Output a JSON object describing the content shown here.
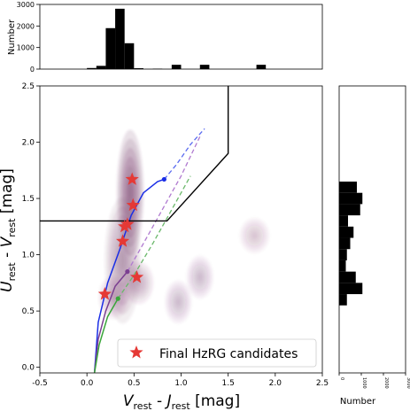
{
  "chart_data": {
    "type": "scatter",
    "xlabel_main": "V",
    "xlabel_main_sub": "rest",
    "xlabel_sep": " - ",
    "xlabel_second": "J",
    "xlabel_second_sub": "rest",
    "xlabel_unit": " [mag]",
    "ylabel_main": "U",
    "ylabel_main_sub": "rest",
    "ylabel_sep": " - ",
    "ylabel_second": "V",
    "ylabel_second_sub": "rest",
    "ylabel_unit": " [mag]",
    "xlim": [
      -0.5,
      2.5
    ],
    "ylim": [
      -0.05,
      2.5
    ],
    "xticks": [
      "-0.5",
      "0.0",
      "0.5",
      "1.0",
      "1.5",
      "2.0",
      "2.5"
    ],
    "xtick_values": [
      -0.5,
      0.0,
      0.5,
      1.0,
      1.5,
      2.0,
      2.5
    ],
    "yticks": [
      "0.0",
      "0.5",
      "1.0",
      "1.5",
      "2.0",
      "2.5"
    ],
    "ytick_values": [
      0.0,
      0.5,
      1.0,
      1.5,
      2.0,
      2.5
    ],
    "legend_label": "Final HzRG candidates",
    "legend_position": "lower-right",
    "candidates": [
      {
        "x": 0.48,
        "y": 1.67
      },
      {
        "x": 0.49,
        "y": 1.44
      },
      {
        "x": 0.43,
        "y": 1.27
      },
      {
        "x": 0.4,
        "y": 1.25
      },
      {
        "x": 0.38,
        "y": 1.12
      },
      {
        "x": 0.53,
        "y": 0.8
      },
      {
        "x": 0.19,
        "y": 0.65
      }
    ],
    "selection_boundary": [
      [
        -0.5,
        1.3
      ],
      [
        0.85,
        1.3
      ],
      [
        1.5,
        1.9
      ],
      [
        1.5,
        2.5
      ]
    ],
    "track_blue": [
      [
        0.08,
        -0.05
      ],
      [
        0.12,
        0.4
      ],
      [
        0.22,
        0.75
      ],
      [
        0.35,
        1.05
      ],
      [
        0.47,
        1.35
      ],
      [
        0.6,
        1.55
      ],
      [
        0.75,
        1.65
      ],
      [
        0.82,
        1.67
      ]
    ],
    "track_blue_dashed": [
      [
        0.82,
        1.67
      ],
      [
        0.95,
        1.8
      ],
      [
        1.1,
        1.98
      ],
      [
        1.25,
        2.12
      ]
    ],
    "track_purple": [
      [
        0.08,
        -0.05
      ],
      [
        0.12,
        0.25
      ],
      [
        0.2,
        0.5
      ],
      [
        0.3,
        0.72
      ],
      [
        0.43,
        0.85
      ]
    ],
    "track_purple_dashed": [
      [
        0.43,
        0.85
      ],
      [
        0.6,
        1.1
      ],
      [
        0.8,
        1.4
      ],
      [
        1.0,
        1.7
      ],
      [
        1.2,
        2.05
      ]
    ],
    "track_green": [
      [
        0.08,
        -0.05
      ],
      [
        0.13,
        0.2
      ],
      [
        0.22,
        0.45
      ],
      [
        0.33,
        0.61
      ]
    ],
    "track_green_dashed": [
      [
        0.33,
        0.61
      ],
      [
        0.5,
        0.82
      ],
      [
        0.7,
        1.1
      ],
      [
        0.9,
        1.4
      ],
      [
        1.1,
        1.7
      ]
    ],
    "density_blobs": [
      {
        "x": 0.46,
        "y": 1.55,
        "sx": 0.09,
        "sy": 0.35,
        "level": 1.0
      },
      {
        "x": 0.38,
        "y": 0.95,
        "sx": 0.12,
        "sy": 0.35,
        "level": 0.55
      },
      {
        "x": 0.55,
        "y": 0.75,
        "sx": 0.1,
        "sy": 0.12,
        "level": 0.35
      },
      {
        "x": 0.28,
        "y": 0.62,
        "sx": 0.1,
        "sy": 0.12,
        "level": 0.3
      },
      {
        "x": 0.97,
        "y": 0.58,
        "sx": 0.09,
        "sy": 0.12,
        "level": 0.25
      },
      {
        "x": 1.2,
        "y": 0.8,
        "sx": 0.09,
        "sy": 0.12,
        "level": 0.25
      },
      {
        "x": 1.78,
        "y": 1.17,
        "sx": 0.1,
        "sy": 0.1,
        "level": 0.18
      }
    ],
    "top_hist": {
      "ylabel": "Number",
      "yticks": [
        "0",
        "1000",
        "2000",
        "3000"
      ],
      "ytick_values": [
        0,
        1000,
        2000,
        3000
      ],
      "ylim": [
        0,
        3000
      ],
      "bin_width": 0.1,
      "bins": [
        {
          "x": 0.05,
          "v": 50
        },
        {
          "x": 0.15,
          "v": 150
        },
        {
          "x": 0.25,
          "v": 1900
        },
        {
          "x": 0.35,
          "v": 2800
        },
        {
          "x": 0.45,
          "v": 1200
        },
        {
          "x": 0.55,
          "v": 40
        },
        {
          "x": 0.75,
          "v": 20
        },
        {
          "x": 0.95,
          "v": 200
        },
        {
          "x": 1.25,
          "v": 200
        },
        {
          "x": 1.85,
          "v": 200
        }
      ]
    },
    "right_hist": {
      "xlabel": "Number",
      "xticks": [
        "0",
        "1000",
        "2000",
        "3000"
      ],
      "xtick_values": [
        0,
        1000,
        2000,
        3000
      ],
      "xlim": [
        0,
        3000
      ],
      "bin_height": 0.1,
      "bins": [
        {
          "y": 0.6,
          "v": 350
        },
        {
          "y": 0.7,
          "v": 1050
        },
        {
          "y": 0.8,
          "v": 750
        },
        {
          "y": 0.9,
          "v": 300
        },
        {
          "y": 1.0,
          "v": 350
        },
        {
          "y": 1.1,
          "v": 500
        },
        {
          "y": 1.2,
          "v": 650
        },
        {
          "y": 1.3,
          "v": 400
        },
        {
          "y": 1.4,
          "v": 950
        },
        {
          "y": 1.5,
          "v": 1050
        },
        {
          "y": 1.6,
          "v": 800
        }
      ]
    },
    "colors": {
      "star": "#e53935",
      "blue_track": "#1a2ee6",
      "purple_track": "#7b3f91",
      "green_track": "#3aa63a",
      "purple_dash": "#b07ad0",
      "green_dash": "#6ab86a",
      "blue_dash": "#5a6bf0",
      "density": "#6b2a5f",
      "hist": "#000000"
    }
  }
}
